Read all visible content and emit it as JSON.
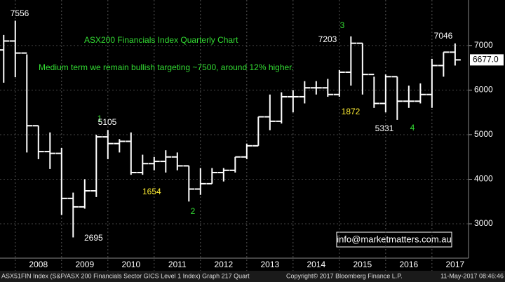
{
  "chart_data": {
    "type": "ohlc",
    "color": "#ffffff",
    "x": [
      2007.75,
      2008.0,
      2008.25,
      2008.5,
      2008.75,
      2009.0,
      2009.25,
      2009.5,
      2009.75,
      2010.0,
      2010.25,
      2010.5,
      2010.75,
      2011.0,
      2011.25,
      2011.5,
      2011.75,
      2012.0,
      2012.25,
      2012.5,
      2012.75,
      2013.0,
      2013.25,
      2013.5,
      2013.75,
      2014.0,
      2014.25,
      2014.5,
      2014.75,
      2015.0,
      2015.25,
      2015.5,
      2015.75,
      2016.0,
      2016.25,
      2016.5,
      2016.75,
      2017.0,
      2017.25,
      2017.5
    ],
    "open": [
      6900,
      7100,
      6830,
      5200,
      4620,
      4580,
      3570,
      3380,
      3740,
      4950,
      4800,
      4850,
      4150,
      4350,
      4400,
      4500,
      4300,
      3780,
      3900,
      4150,
      4200,
      4500,
      4750,
      5400,
      5300,
      5850,
      5850,
      6050,
      6050,
      5900,
      6400,
      7050,
      6350,
      5700,
      6300,
      5750,
      5750,
      5900,
      6550,
      6850
    ],
    "high": [
      7236,
      7556,
      6800,
      5200,
      5050,
      4700,
      3700,
      4000,
      5000,
      5105,
      4900,
      5050,
      4550,
      4500,
      4650,
      4600,
      4300,
      4250,
      4250,
      4250,
      4500,
      4800,
      5400,
      5900,
      5950,
      6000,
      6200,
      6200,
      6250,
      6450,
      7203,
      7050,
      6300,
      6350,
      6300,
      6100,
      6150,
      6700,
      6850,
      7046
    ],
    "low": [
      6165,
      6290,
      4600,
      4450,
      4230,
      3200,
      2695,
      3340,
      3600,
      4450,
      4600,
      4100,
      4100,
      4200,
      4150,
      4200,
      3500,
      3650,
      3900,
      3950,
      4150,
      4450,
      4750,
      5100,
      5250,
      5500,
      5700,
      5900,
      5850,
      5850,
      6100,
      5900,
      5600,
      5500,
      5331,
      5600,
      5700,
      5600,
      6300,
      6550
    ],
    "close": [
      7100,
      6830,
      5200,
      4620,
      4580,
      3570,
      3380,
      3740,
      4950,
      4800,
      4850,
      4150,
      4350,
      4400,
      4500,
      4300,
      3780,
      3900,
      4150,
      4200,
      4500,
      4750,
      5400,
      5300,
      5850,
      5850,
      6050,
      6050,
      5900,
      6400,
      7050,
      6350,
      5700,
      6300,
      5750,
      5750,
      5900,
      6550,
      6850,
      6677
    ],
    "xlim": [
      2007.67,
      2017.79
    ],
    "xticks": [
      {
        "value": 2008.5,
        "label": "2008"
      },
      {
        "value": 2009.5,
        "label": "2009"
      },
      {
        "value": 2010.5,
        "label": "2010"
      },
      {
        "value": 2011.5,
        "label": "2011"
      },
      {
        "value": 2012.5,
        "label": "2012"
      },
      {
        "value": 2013.5,
        "label": "2013"
      },
      {
        "value": 2014.5,
        "label": "2014"
      },
      {
        "value": 2015.5,
        "label": "2015"
      },
      {
        "value": 2016.5,
        "label": "2016"
      },
      {
        "value": 2017.5,
        "label": "2017"
      }
    ],
    "ylim": [
      2230,
      8020
    ],
    "yticks": [
      3000,
      4000,
      5000,
      6000,
      7000
    ],
    "grid": true,
    "last_price": {
      "value": 6677,
      "label": "6677.0"
    },
    "annotations": [
      {
        "text": "7556",
        "color": "#ffffff"
      },
      {
        "text": "ASX200 Financials Index Quarterly Chart",
        "color": "#33dd33"
      },
      {
        "text": "Medium term we remain bullish targeting ~7500, around 12% higher.",
        "color": "#33dd33"
      },
      {
        "text": "1",
        "color": "#33dd33"
      },
      {
        "text": "5105",
        "color": "#ffffff"
      },
      {
        "text": "2695",
        "color": "#ffffff"
      },
      {
        "text": "1654",
        "color": "#ffee33"
      },
      {
        "text": "2",
        "color": "#33dd33"
      },
      {
        "text": "7203",
        "color": "#ffffff"
      },
      {
        "text": "3",
        "color": "#33dd33"
      },
      {
        "text": "1872",
        "color": "#ffee33"
      },
      {
        "text": "5331",
        "color": "#ffffff"
      },
      {
        "text": "4",
        "color": "#33dd33"
      },
      {
        "text": "7046",
        "color": "#ffffff"
      }
    ],
    "watermark": "info@marketmatters.com.au",
    "footer": {
      "left": "ASX51FIN Index (S&P/ASX 200 Financials Sector GICS Level 1 Index) Graph 217  Quart",
      "center": "Copyright© 2017 Bloomberg Finance L.P.",
      "right": "11-May-2017 08:46:46"
    }
  }
}
